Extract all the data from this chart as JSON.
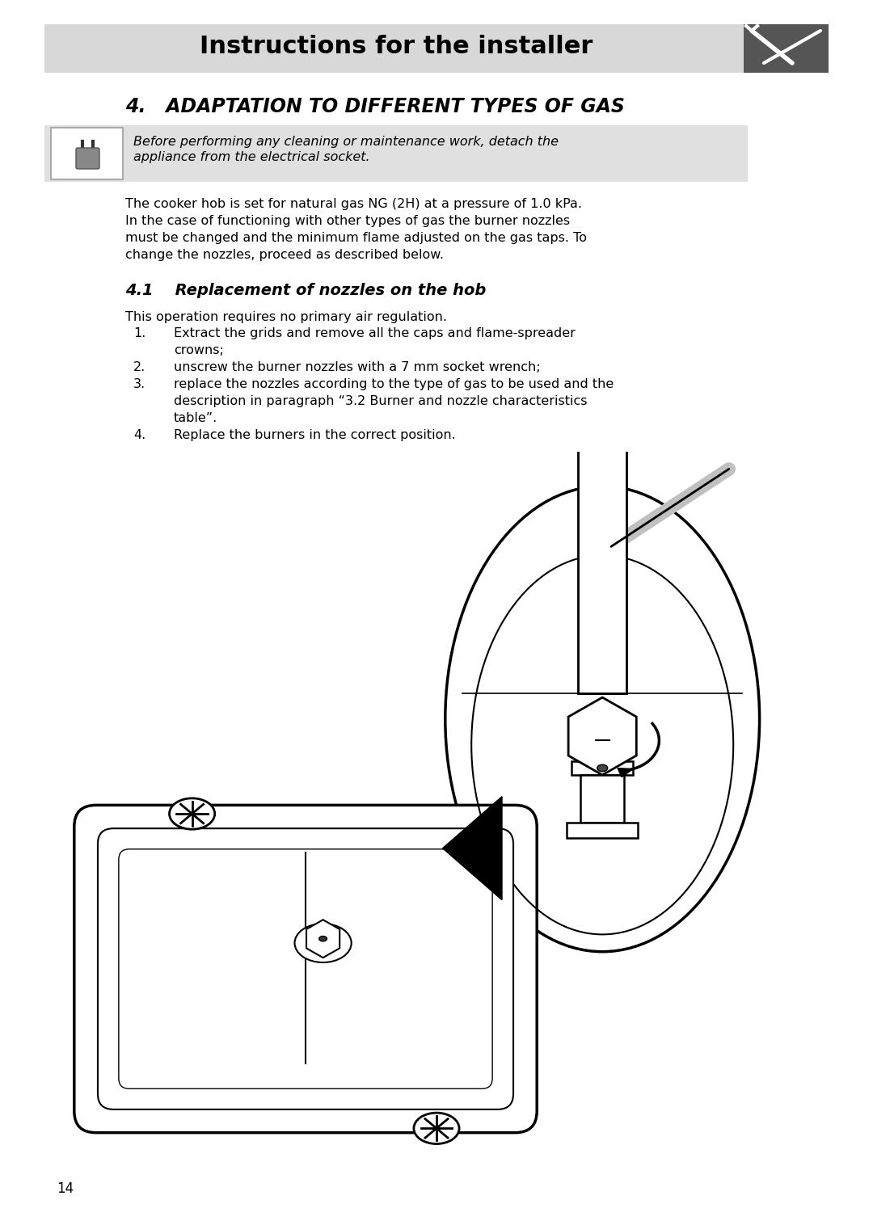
{
  "page_bg": "#ffffff",
  "header_bg": "#d8d8d8",
  "header_text": "Instructions for the installer",
  "header_text_color": "#000000",
  "icon_bg": "#555555",
  "section_title": "4.   ADAPTATION TO DIFFERENT TYPES OF GAS",
  "warning_bg": "#e0e0e0",
  "warning_text_line1": "Before performing any cleaning or maintenance work, detach the",
  "warning_text_line2": "appliance from the electrical socket.",
  "body_para_lines": [
    "The cooker hob is set for natural gas NG (2H) at a pressure of 1.0 kPa.",
    "In the case of functioning with other types of gas the burner nozzles",
    "must be changed and the minimum flame adjusted on the gas taps. To",
    "change the nozzles, proceed as described below."
  ],
  "subsection_title": "4.1    Replacement of nozzles on the hob",
  "intro_line": "This operation requires no primary air regulation.",
  "steps": [
    [
      "Extract the grids and remove all the caps and flame-spreader",
      "crowns;"
    ],
    [
      "unscrew the burner nozzles with a 7 mm socket wrench;"
    ],
    [
      "replace the nozzles according to the type of gas to be used and the",
      "description in paragraph “3.2 Burner and nozzle characteristics",
      "table”."
    ],
    [
      "Replace the burners in the correct position."
    ]
  ],
  "page_number": "14"
}
